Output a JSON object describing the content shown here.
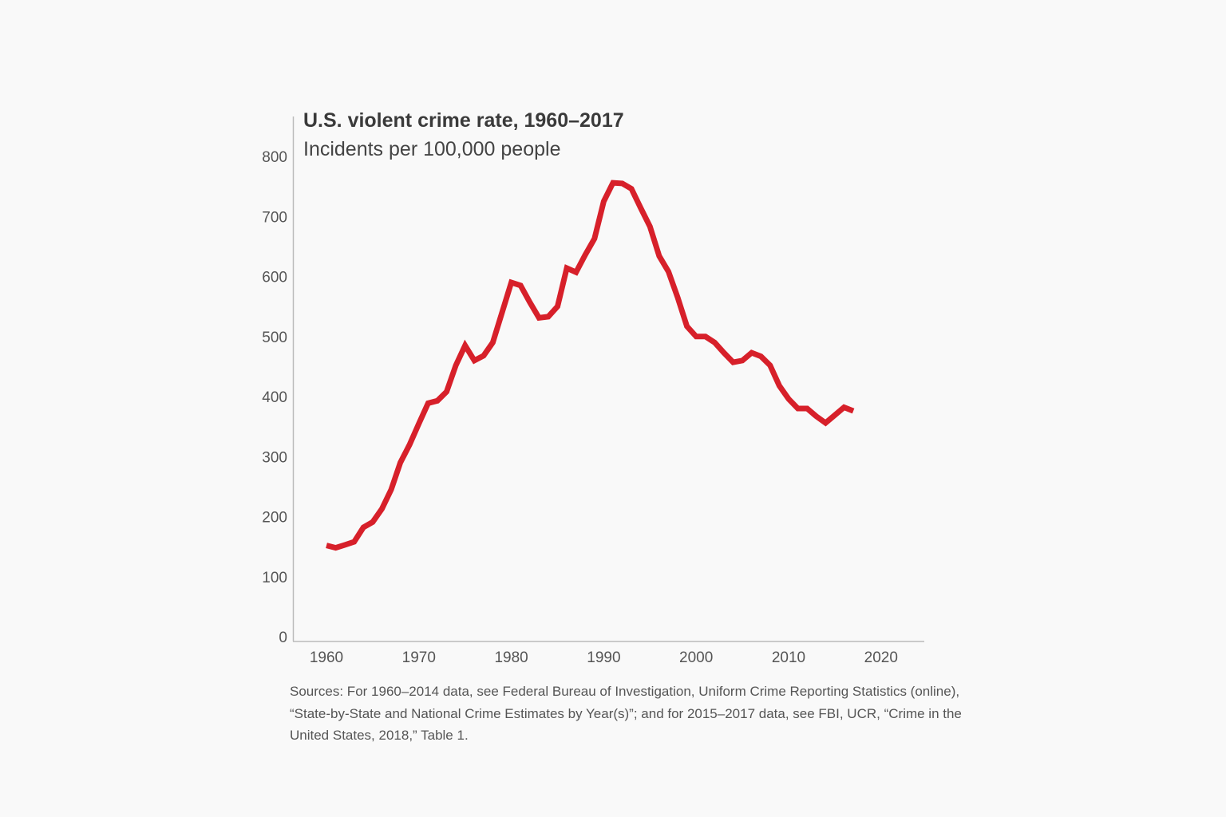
{
  "chart_data": {
    "type": "line",
    "title": "U.S. violent crime rate, 1960–2017",
    "subtitle": "Incidents per 100,000 people",
    "xlabel": "",
    "ylabel": "",
    "xlim": [
      1958,
      2025
    ],
    "ylim": [
      0,
      800
    ],
    "xticks": [
      1960,
      1970,
      1980,
      1990,
      2000,
      2010,
      2020
    ],
    "yticks": [
      0,
      100,
      200,
      300,
      400,
      500,
      600,
      700,
      800
    ],
    "grid": false,
    "legend": "none",
    "line_color": "#d7202a",
    "x": [
      1960,
      1961,
      1962,
      1963,
      1964,
      1965,
      1966,
      1967,
      1968,
      1969,
      1970,
      1971,
      1972,
      1973,
      1974,
      1975,
      1976,
      1977,
      1978,
      1979,
      1980,
      1981,
      1982,
      1983,
      1984,
      1985,
      1986,
      1987,
      1988,
      1989,
      1990,
      1991,
      1992,
      1993,
      1994,
      1995,
      1996,
      1997,
      1998,
      1999,
      2000,
      2001,
      2002,
      2003,
      2004,
      2005,
      2006,
      2007,
      2008,
      2009,
      2010,
      2011,
      2012,
      2013,
      2014,
      2015,
      2016,
      2017
    ],
    "series": [
      {
        "values": [
          152,
          148,
          153,
          158,
          182,
          191,
          213,
          245,
          290,
          320,
          355,
          389,
          393,
          408,
          452,
          485,
          460,
          468,
          490,
          540,
          590,
          585,
          557,
          531,
          533,
          550,
          614,
          607,
          636,
          663,
          725,
          756,
          755,
          746,
          714,
          683,
          634,
          608,
          565,
          517,
          500,
          500,
          490,
          473,
          457,
          460,
          473,
          467,
          452,
          418,
          396,
          380,
          380,
          367,
          356,
          369,
          382,
          376
        ]
      }
    ],
    "source": "Sources: For 1960–2014 data, see Federal Bureau of Investigation, Uniform Crime Reporting Statistics (online), “State-by-State and National Crime Estimates by Year(s)”; and for 2015–2017 data, see FBI, UCR, “Crime in the United States, 2018,” Table 1."
  }
}
